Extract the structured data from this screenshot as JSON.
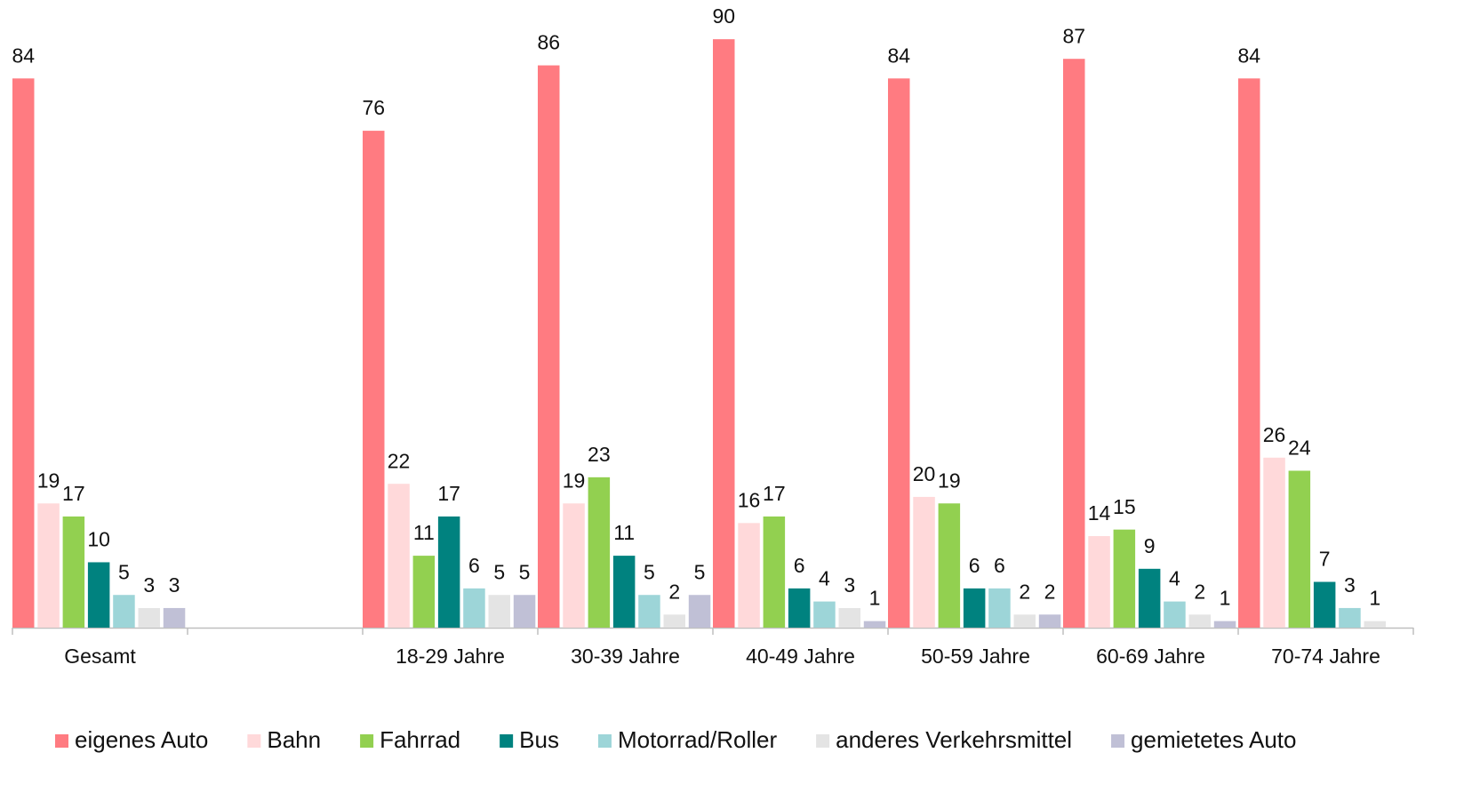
{
  "chart_data": {
    "type": "bar",
    "categories": [
      "Gesamt",
      null,
      "18-29 Jahre",
      "30-39 Jahre",
      "40-49 Jahre",
      "50-59 Jahre",
      "60-69 Jahre",
      "70-74 Jahre"
    ],
    "series": [
      {
        "name": "eigenes Auto",
        "color": "#ff7b81",
        "values": [
          84,
          null,
          76,
          86,
          90,
          84,
          87,
          84
        ]
      },
      {
        "name": "Bahn",
        "color": "#ffd9da",
        "values": [
          19,
          null,
          22,
          19,
          16,
          20,
          14,
          26
        ]
      },
      {
        "name": "Fahrrad",
        "color": "#92d050",
        "values": [
          17,
          null,
          11,
          23,
          17,
          19,
          15,
          24
        ]
      },
      {
        "name": "Bus",
        "color": "#00827f",
        "values": [
          10,
          null,
          17,
          11,
          6,
          6,
          9,
          7
        ]
      },
      {
        "name": "Motorrad/Roller",
        "color": "#9dd5d8",
        "values": [
          5,
          null,
          6,
          5,
          4,
          6,
          4,
          3
        ]
      },
      {
        "name": "anderes Verkehrsmittel",
        "color": "#e4e4e4",
        "values": [
          3,
          null,
          5,
          2,
          3,
          2,
          2,
          1
        ]
      },
      {
        "name": "gemietetes Auto",
        "color": "#c0c0d6",
        "values": [
          3,
          null,
          5,
          5,
          1,
          2,
          1,
          null
        ]
      }
    ],
    "ylim": [
      0,
      96
    ],
    "legend": "bottom"
  }
}
